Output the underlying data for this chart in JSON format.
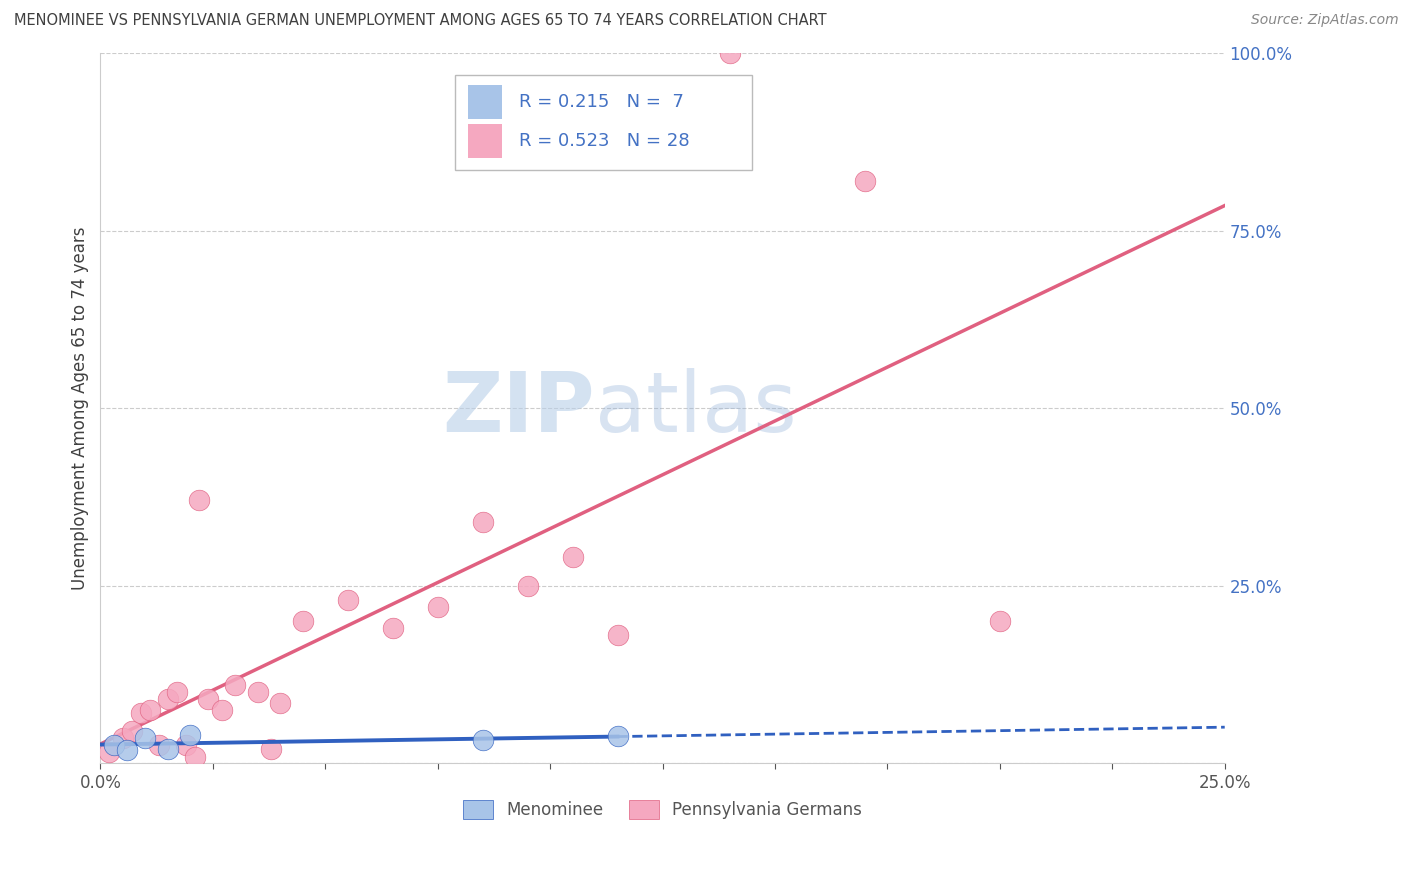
{
  "title": "MENOMINEE VS PENNSYLVANIA GERMAN UNEMPLOYMENT AMONG AGES 65 TO 74 YEARS CORRELATION CHART",
  "source": "Source: ZipAtlas.com",
  "ylabel": "Unemployment Among Ages 65 to 74 years",
  "xlim": [
    0.0,
    25.0
  ],
  "ylim": [
    0.0,
    100.0
  ],
  "yticks_right": [
    0.0,
    25.0,
    50.0,
    75.0,
    100.0
  ],
  "ytick_labels_right": [
    "",
    "25.0%",
    "50.0%",
    "75.0%",
    "100.0%"
  ],
  "menominee_R": 0.215,
  "menominee_N": 7,
  "penn_german_R": 0.523,
  "penn_german_N": 28,
  "menominee_color": "#a8c4e8",
  "penn_german_color": "#f5a8c0",
  "menominee_line_color": "#3060c0",
  "penn_german_line_color": "#e06080",
  "title_color": "#404040",
  "source_color": "#888888",
  "ylabel_color": "#404040",
  "right_axis_color": "#4472c4",
  "legend_text_color": "#4472c4",
  "grid_color": "#cccccc",
  "background_color": "#ffffff",
  "menominee_x": [
    0.3,
    0.6,
    1.0,
    1.5,
    2.0,
    8.5,
    11.5
  ],
  "menominee_y": [
    2.5,
    1.8,
    3.5,
    2.0,
    4.0,
    3.2,
    3.8
  ],
  "penn_german_x": [
    0.2,
    0.5,
    0.7,
    0.9,
    1.1,
    1.3,
    1.5,
    1.7,
    1.9,
    2.1,
    2.4,
    2.7,
    3.0,
    3.5,
    4.0,
    4.5,
    5.5,
    6.5,
    7.5,
    8.5,
    9.5,
    10.5,
    11.5,
    14.0,
    17.0,
    20.0,
    2.2,
    3.8
  ],
  "penn_german_y": [
    1.5,
    3.5,
    4.5,
    7.0,
    7.5,
    2.5,
    9.0,
    10.0,
    2.5,
    0.8,
    9.0,
    7.5,
    11.0,
    10.0,
    8.5,
    20.0,
    23.0,
    19.0,
    22.0,
    34.0,
    25.0,
    29.0,
    18.0,
    100.0,
    82.0,
    20.0,
    37.0,
    2.0
  ],
  "menominee_solid_end_x": 11.5,
  "penn_german_line_start_x": 0.0,
  "penn_german_line_end_x": 25.0
}
